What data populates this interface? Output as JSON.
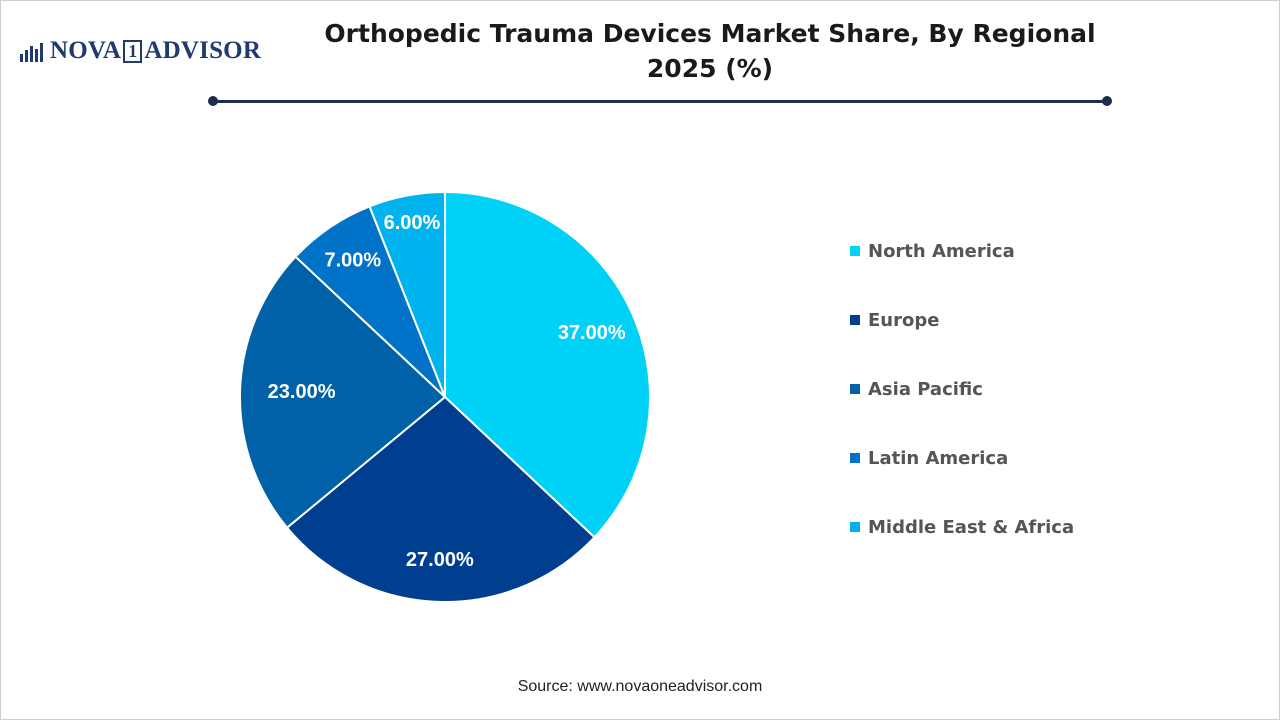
{
  "brand": {
    "name_part1": "NOVA",
    "name_box": "1",
    "name_part2": "ADVISOR"
  },
  "colors": {
    "north_america": "#00d1f6",
    "europe": "#003f8f",
    "asia_pacific": "#0061a8",
    "latin_america": "#0073c8",
    "middle_east_africa": "#00b3ee",
    "rule": "#1f2d4d"
  },
  "chart_data": {
    "type": "pie",
    "title": "Orthopedic Trauma Devices Market Share, By Regional 2025 (%)",
    "title_line1": "Orthopedic Trauma Devices Market Share, By Regional",
    "title_line2": "2025 (%)",
    "categories": [
      "North America",
      "Europe",
      "Asia Pacific",
      "Latin America",
      "Middle East & Africa"
    ],
    "values": [
      37,
      27,
      23,
      7,
      6
    ],
    "data_labels": [
      "37.00%",
      "27.00%",
      "23.00%",
      "7.00%",
      "6.00%"
    ],
    "legend_position": "right"
  },
  "source": "Source: www.novaoneadvisor.com"
}
